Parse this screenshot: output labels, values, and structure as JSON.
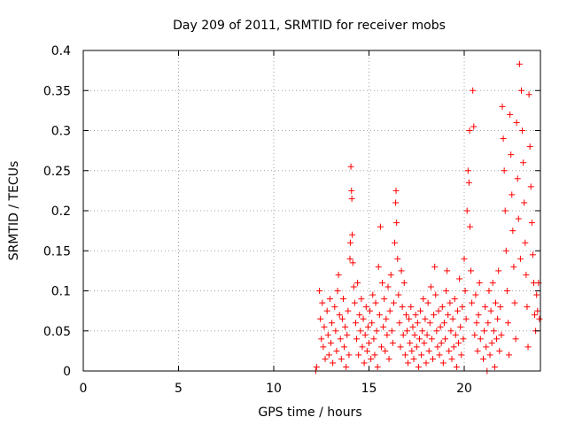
{
  "chart_data": {
    "type": "scatter",
    "title": "Day 209 of 2011, SRMTID for receiver mobs",
    "xlabel": "GPS time / hours",
    "ylabel": "SRMTID / TECUs",
    "xlim": [
      0,
      24
    ],
    "ylim": [
      0,
      0.4
    ],
    "x_ticks": [
      0,
      5,
      10,
      15,
      20
    ],
    "x_tick_labels": [
      "0",
      "5",
      "10",
      "15",
      "20"
    ],
    "y_ticks": [
      0,
      0.05,
      0.1,
      0.15,
      0.2,
      0.25,
      0.3,
      0.35,
      0.4
    ],
    "y_tick_labels": [
      "0",
      "0.05",
      "0.1",
      "0.15",
      "0.2",
      "0.25",
      "0.3",
      "0.35",
      "0.4"
    ],
    "grid": true,
    "marker": "+",
    "color": "#ff0000",
    "series": [
      {
        "name": "mobs",
        "points": [
          [
            12.2,
            0.0
          ],
          [
            12.25,
            0.005
          ],
          [
            12.4,
            0.1
          ],
          [
            12.45,
            0.065
          ],
          [
            12.5,
            0.04
          ],
          [
            12.55,
            0.085
          ],
          [
            12.6,
            0.03
          ],
          [
            12.65,
            0.055
          ],
          [
            12.7,
            0.015
          ],
          [
            12.8,
            0.075
          ],
          [
            12.85,
            0.045
          ],
          [
            12.9,
            0.02
          ],
          [
            12.95,
            0.09
          ],
          [
            13.0,
            0.035
          ],
          [
            13.05,
            0.06
          ],
          [
            13.1,
            0.01
          ],
          [
            13.2,
            0.08
          ],
          [
            13.25,
            0.05
          ],
          [
            13.3,
            0.025
          ],
          [
            13.35,
            0.1
          ],
          [
            13.4,
            0.12
          ],
          [
            13.45,
            0.07
          ],
          [
            13.5,
            0.04
          ],
          [
            13.55,
            0.015
          ],
          [
            13.6,
            0.065
          ],
          [
            13.65,
            0.09
          ],
          [
            13.7,
            0.03
          ],
          [
            13.75,
            0.055
          ],
          [
            13.8,
            0.005
          ],
          [
            13.85,
            0.045
          ],
          [
            13.9,
            0.075
          ],
          [
            13.95,
            0.02
          ],
          [
            14.0,
            0.14
          ],
          [
            14.02,
            0.16
          ],
          [
            14.05,
            0.255
          ],
          [
            14.08,
            0.225
          ],
          [
            14.1,
            0.215
          ],
          [
            14.12,
            0.17
          ],
          [
            14.15,
            0.135
          ],
          [
            14.2,
            0.105
          ],
          [
            14.25,
            0.085
          ],
          [
            14.3,
            0.06
          ],
          [
            14.35,
            0.04
          ],
          [
            14.4,
            0.11
          ],
          [
            14.45,
            0.02
          ],
          [
            14.5,
            0.07
          ],
          [
            14.55,
            0.05
          ],
          [
            14.6,
            0.09
          ],
          [
            14.65,
            0.03
          ],
          [
            14.7,
            0.065
          ],
          [
            14.75,
            0.01
          ],
          [
            14.8,
            0.045
          ],
          [
            14.85,
            0.08
          ],
          [
            14.9,
            0.025
          ],
          [
            14.95,
            0.055
          ],
          [
            15.0,
            0.035
          ],
          [
            15.05,
            0.075
          ],
          [
            15.1,
            0.015
          ],
          [
            15.15,
            0.06
          ],
          [
            15.2,
            0.095
          ],
          [
            15.25,
            0.04
          ],
          [
            15.3,
            0.02
          ],
          [
            15.35,
            0.085
          ],
          [
            15.4,
            0.05
          ],
          [
            15.45,
            0.005
          ],
          [
            15.5,
            0.13
          ],
          [
            15.55,
            0.07
          ],
          [
            15.6,
            0.18
          ],
          [
            15.65,
            0.03
          ],
          [
            15.7,
            0.11
          ],
          [
            15.75,
            0.055
          ],
          [
            15.8,
            0.09
          ],
          [
            15.85,
            0.025
          ],
          [
            15.9,
            0.065
          ],
          [
            15.95,
            0.045
          ],
          [
            16.0,
            0.105
          ],
          [
            16.05,
            0.015
          ],
          [
            16.1,
            0.075
          ],
          [
            16.15,
            0.12
          ],
          [
            16.2,
            0.05
          ],
          [
            16.25,
            0.035
          ],
          [
            16.3,
            0.085
          ],
          [
            16.35,
            0.16
          ],
          [
            16.4,
            0.21
          ],
          [
            16.42,
            0.225
          ],
          [
            16.45,
            0.185
          ],
          [
            16.5,
            0.14
          ],
          [
            16.55,
            0.095
          ],
          [
            16.6,
            0.06
          ],
          [
            16.65,
            0.03
          ],
          [
            16.7,
            0.125
          ],
          [
            16.75,
            0.08
          ],
          [
            16.8,
            0.045
          ],
          [
            16.85,
            0.11
          ],
          [
            16.9,
            0.02
          ],
          [
            16.95,
            0.07
          ],
          [
            17.0,
            0.05
          ],
          [
            17.05,
            0.01
          ],
          [
            17.1,
            0.065
          ],
          [
            17.15,
            0.035
          ],
          [
            17.2,
            0.08
          ],
          [
            17.25,
            0.025
          ],
          [
            17.3,
            0.055
          ],
          [
            17.35,
            0.015
          ],
          [
            17.4,
            0.045
          ],
          [
            17.45,
            0.07
          ],
          [
            17.5,
            0.03
          ],
          [
            17.55,
            0.06
          ],
          [
            17.6,
            0.005
          ],
          [
            17.65,
            0.04
          ],
          [
            17.7,
            0.075
          ],
          [
            17.75,
            0.02
          ],
          [
            17.8,
            0.05
          ],
          [
            17.85,
            0.09
          ],
          [
            17.9,
            0.035
          ],
          [
            17.95,
            0.065
          ],
          [
            18.0,
            0.01
          ],
          [
            18.05,
            0.045
          ],
          [
            18.1,
            0.085
          ],
          [
            18.15,
            0.025
          ],
          [
            18.2,
            0.06
          ],
          [
            18.25,
            0.105
          ],
          [
            18.3,
            0.04
          ],
          [
            18.35,
            0.015
          ],
          [
            18.4,
            0.07
          ],
          [
            18.45,
            0.13
          ],
          [
            18.5,
            0.095
          ],
          [
            18.55,
            0.05
          ],
          [
            18.6,
            0.03
          ],
          [
            18.65,
            0.075
          ],
          [
            18.7,
            0.02
          ],
          [
            18.75,
            0.055
          ],
          [
            18.8,
            0.035
          ],
          [
            18.85,
            0.08
          ],
          [
            18.9,
            0.01
          ],
          [
            18.95,
            0.06
          ],
          [
            19.0,
            0.04
          ],
          [
            19.05,
            0.1
          ],
          [
            19.1,
            0.125
          ],
          [
            19.15,
            0.07
          ],
          [
            19.2,
            0.025
          ],
          [
            19.25,
            0.085
          ],
          [
            19.3,
            0.05
          ],
          [
            19.35,
            0.015
          ],
          [
            19.4,
            0.065
          ],
          [
            19.45,
            0.03
          ],
          [
            19.5,
            0.09
          ],
          [
            19.55,
            0.045
          ],
          [
            19.6,
            0.005
          ],
          [
            19.65,
            0.075
          ],
          [
            19.7,
            0.035
          ],
          [
            19.75,
            0.115
          ],
          [
            19.8,
            0.055
          ],
          [
            19.85,
            0.02
          ],
          [
            19.9,
            0.08
          ],
          [
            19.95,
            0.04
          ],
          [
            20.0,
            0.14
          ],
          [
            20.05,
            0.1
          ],
          [
            20.1,
            0.065
          ],
          [
            20.15,
            0.2
          ],
          [
            20.2,
            0.25
          ],
          [
            20.25,
            0.235
          ],
          [
            20.28,
            0.3
          ],
          [
            20.3,
            0.18
          ],
          [
            20.35,
            0.125
          ],
          [
            20.4,
            0.085
          ],
          [
            20.45,
            0.35
          ],
          [
            20.5,
            0.305
          ],
          [
            20.55,
            0.045
          ],
          [
            20.6,
            0.095
          ],
          [
            20.65,
            0.06
          ],
          [
            20.7,
            0.025
          ],
          [
            20.75,
            0.07
          ],
          [
            20.8,
            0.11
          ],
          [
            20.85,
            0.04
          ],
          [
            21.0,
            0.015
          ],
          [
            21.05,
            0.05
          ],
          [
            21.1,
            0.08
          ],
          [
            21.15,
            0.03
          ],
          [
            21.2,
            0.0
          ],
          [
            21.25,
            0.06
          ],
          [
            21.3,
            0.1
          ],
          [
            21.35,
            0.02
          ],
          [
            21.4,
            0.075
          ],
          [
            21.45,
            0.035
          ],
          [
            21.5,
            0.11
          ],
          [
            21.55,
            0.05
          ],
          [
            21.6,
            0.005
          ],
          [
            21.65,
            0.085
          ],
          [
            21.7,
            0.04
          ],
          [
            21.75,
            0.065
          ],
          [
            21.8,
            0.125
          ],
          [
            21.85,
            0.025
          ],
          [
            21.9,
            0.08
          ],
          [
            21.95,
            0.045
          ],
          [
            22.0,
            0.33
          ],
          [
            22.05,
            0.29
          ],
          [
            22.1,
            0.25
          ],
          [
            22.15,
            0.2
          ],
          [
            22.2,
            0.15
          ],
          [
            22.25,
            0.1
          ],
          [
            22.3,
            0.06
          ],
          [
            22.35,
            0.02
          ],
          [
            22.4,
            0.32
          ],
          [
            22.45,
            0.27
          ],
          [
            22.5,
            0.22
          ],
          [
            22.55,
            0.175
          ],
          [
            22.6,
            0.13
          ],
          [
            22.65,
            0.085
          ],
          [
            22.7,
            0.04
          ],
          [
            22.75,
            0.31
          ],
          [
            22.8,
            0.24
          ],
          [
            22.85,
            0.19
          ],
          [
            22.9,
            0.383
          ],
          [
            22.95,
            0.14
          ],
          [
            23.0,
            0.35
          ],
          [
            23.05,
            0.3
          ],
          [
            23.1,
            0.26
          ],
          [
            23.15,
            0.21
          ],
          [
            23.2,
            0.16
          ],
          [
            23.25,
            0.12
          ],
          [
            23.3,
            0.08
          ],
          [
            23.35,
            0.03
          ],
          [
            23.4,
            0.345
          ],
          [
            23.45,
            0.28
          ],
          [
            23.5,
            0.23
          ],
          [
            23.55,
            0.185
          ],
          [
            23.6,
            0.145
          ],
          [
            23.65,
            0.11
          ],
          [
            23.7,
            0.07
          ],
          [
            23.75,
            0.05
          ],
          [
            23.8,
            0.095
          ],
          [
            23.85,
            0.075
          ],
          [
            23.9,
            0.11
          ],
          [
            23.95,
            0.065
          ]
        ]
      }
    ]
  }
}
